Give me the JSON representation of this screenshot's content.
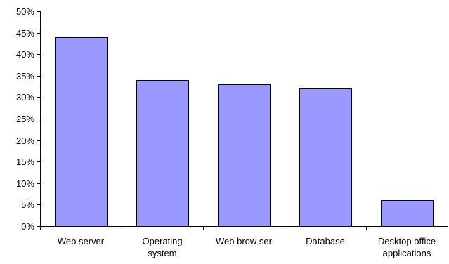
{
  "chart_data": {
    "type": "bar",
    "title": "",
    "xlabel": "",
    "ylabel": "",
    "categories": [
      [
        "Web server"
      ],
      [
        "Operating",
        "system"
      ],
      [
        "Web brow ser"
      ],
      [
        "Database"
      ],
      [
        "Desktop office",
        "applications"
      ]
    ],
    "values": [
      44,
      34,
      33,
      32,
      6
    ],
    "ylim": [
      0,
      50
    ],
    "y_ticks": [
      0,
      5,
      10,
      15,
      20,
      25,
      30,
      35,
      40,
      45,
      50
    ],
    "y_tick_labels": [
      "0%",
      "5%",
      "10%",
      "15%",
      "20%",
      "25%",
      "30%",
      "35%",
      "40%",
      "45%",
      "50%"
    ],
    "grid": false,
    "legend": "none",
    "bar_color": "#9999ff",
    "bar_stroke": "#000000"
  }
}
